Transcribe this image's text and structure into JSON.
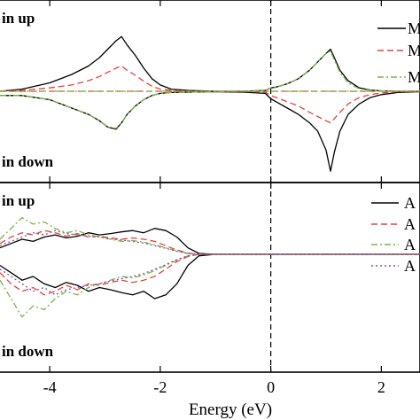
{
  "xlabel": "Energy (eV)",
  "chart_data": [
    {
      "type": "line",
      "xlim": [
        -4.9,
        2.7
      ],
      "ylim": [
        -2.0,
        1.9
      ],
      "grid": false,
      "legend_position": "top-right",
      "annotations": [
        {
          "text": "in up",
          "position": "top-left"
        },
        {
          "text": "in down",
          "position": "bottom-left"
        }
      ],
      "fermi_line_x": 0,
      "series": [
        {
          "name": "M",
          "color": "#000000",
          "dash": "solid",
          "x": [
            -4.9,
            -4.5,
            -4.0,
            -3.6,
            -3.3,
            -3.1,
            -2.95,
            -2.8,
            -2.7,
            -2.6,
            -2.45,
            -2.3,
            -2.15,
            -2.0,
            -1.8,
            -1.5,
            -1.0,
            -0.5,
            -0.1,
            0.0,
            0.1,
            0.3,
            0.5,
            0.7,
            0.85,
            1.0,
            1.08,
            1.15,
            1.25,
            1.4,
            1.6,
            1.8,
            2.0,
            2.3,
            2.7
          ],
          "up": [
            0.0,
            0.05,
            0.2,
            0.4,
            0.6,
            0.8,
            1.0,
            1.2,
            1.3,
            1.1,
            0.85,
            0.55,
            0.3,
            0.15,
            0.05,
            0.02,
            0.0,
            0.0,
            0.02,
            0.08,
            0.1,
            0.18,
            0.3,
            0.5,
            0.7,
            0.9,
            1.0,
            0.8,
            0.5,
            0.25,
            0.08,
            0.03,
            0.01,
            0.0,
            0.0
          ],
          "down": [
            -0.1,
            -0.1,
            -0.2,
            -0.4,
            -0.55,
            -0.7,
            -0.85,
            -0.9,
            -0.75,
            -0.55,
            -0.35,
            -0.2,
            -0.1,
            -0.05,
            -0.03,
            -0.02,
            -0.01,
            -0.02,
            -0.05,
            -0.18,
            -0.25,
            -0.4,
            -0.55,
            -0.75,
            -0.95,
            -1.4,
            -1.9,
            -1.45,
            -0.95,
            -0.55,
            -0.3,
            -0.15,
            -0.08,
            -0.03,
            -0.01
          ]
        },
        {
          "name": "M",
          "color": "#e8413a",
          "dash": "dashed",
          "x": [
            -4.9,
            -4.5,
            -4.0,
            -3.6,
            -3.3,
            -3.1,
            -2.95,
            -2.8,
            -2.7,
            -2.6,
            -2.45,
            -2.3,
            -2.15,
            -2.0,
            -1.8,
            -1.5,
            -1.0,
            -0.5,
            -0.1,
            0.0,
            0.1,
            0.3,
            0.5,
            0.7,
            0.85,
            1.0,
            1.08,
            1.15,
            1.25,
            1.4,
            1.6,
            1.8,
            2.0,
            2.3,
            2.7
          ],
          "up": [
            0.0,
            0.02,
            0.08,
            0.15,
            0.25,
            0.35,
            0.45,
            0.55,
            0.6,
            0.5,
            0.38,
            0.24,
            0.12,
            0.05,
            0.02,
            0.0,
            0.0,
            0.0,
            0.0,
            0.0,
            0.0,
            0.0,
            0.0,
            0.0,
            0.0,
            0.0,
            0.0,
            0.0,
            0.0,
            0.0,
            0.0,
            0.0,
            0.0,
            0.0,
            0.0
          ],
          "down": [
            0.0,
            0.0,
            0.0,
            0.0,
            0.0,
            0.0,
            0.0,
            0.0,
            0.0,
            0.0,
            0.0,
            0.0,
            0.0,
            0.0,
            0.0,
            0.0,
            0.0,
            0.0,
            -0.02,
            -0.1,
            -0.15,
            -0.25,
            -0.35,
            -0.5,
            -0.6,
            -0.7,
            -0.75,
            -0.65,
            -0.5,
            -0.3,
            -0.15,
            -0.08,
            -0.04,
            -0.01,
            0.0
          ]
        },
        {
          "name": "M",
          "color": "#7ab648",
          "dash": "dash-dot",
          "x": [
            -4.9,
            -4.5,
            -4.0,
            -3.6,
            -3.3,
            -3.1,
            -2.95,
            -2.8,
            -2.7,
            -2.6,
            -2.45,
            -2.3,
            -2.15,
            -2.0,
            -1.8,
            -1.5,
            -1.0,
            -0.5,
            -0.1,
            0.0,
            0.1,
            0.3,
            0.5,
            0.7,
            0.85,
            1.0,
            1.08,
            1.15,
            1.25,
            1.4,
            1.6,
            1.8,
            2.0,
            2.3,
            2.7
          ],
          "up": [
            0.0,
            0.0,
            0.0,
            0.0,
            0.0,
            0.0,
            0.0,
            0.0,
            0.0,
            0.0,
            0.0,
            0.0,
            0.0,
            0.0,
            0.0,
            0.0,
            0.0,
            0.0,
            0.02,
            0.08,
            0.1,
            0.18,
            0.3,
            0.5,
            0.7,
            0.9,
            0.95,
            0.75,
            0.45,
            0.2,
            0.06,
            0.02,
            0.01,
            0.0,
            0.0
          ],
          "down": [
            -0.1,
            -0.1,
            -0.2,
            -0.4,
            -0.55,
            -0.7,
            -0.85,
            -0.88,
            -0.75,
            -0.55,
            -0.35,
            -0.2,
            -0.1,
            -0.05,
            -0.03,
            -0.02,
            -0.01,
            0.0,
            0.0,
            0.0,
            0.0,
            0.0,
            0.0,
            0.0,
            0.0,
            0.0,
            0.0,
            0.0,
            0.0,
            0.0,
            0.0,
            0.0,
            0.0,
            0.0,
            0.0
          ]
        }
      ]
    },
    {
      "type": "line",
      "xlim": [
        -4.9,
        2.7
      ],
      "ylim": [
        -1.5,
        1.5
      ],
      "grid": false,
      "legend_position": "top-right",
      "annotations": [
        {
          "text": "in up",
          "position": "top-left"
        },
        {
          "text": "in down",
          "position": "bottom-left"
        }
      ],
      "fermi_line_x": 0,
      "series": [
        {
          "name": "A",
          "color": "#000000",
          "dash": "solid",
          "x": [
            -4.9,
            -4.7,
            -4.5,
            -4.3,
            -4.1,
            -3.9,
            -3.7,
            -3.5,
            -3.3,
            -3.1,
            -2.9,
            -2.7,
            -2.5,
            -2.3,
            -2.1,
            -1.9,
            -1.7,
            -1.5,
            -1.3,
            -1.0,
            -0.5,
            0.0,
            0.5,
            1.0,
            1.5,
            2.0,
            2.7
          ],
          "up": [
            0.15,
            0.25,
            0.35,
            0.3,
            0.4,
            0.45,
            0.38,
            0.42,
            0.5,
            0.45,
            0.48,
            0.52,
            0.55,
            0.5,
            0.6,
            0.55,
            0.4,
            0.15,
            0.02,
            0.0,
            0.0,
            0.0,
            0.0,
            0.0,
            0.0,
            0.0,
            0.0
          ],
          "down": [
            -0.15,
            -0.25,
            -0.35,
            -0.3,
            -0.4,
            -0.45,
            -0.38,
            -0.42,
            -0.5,
            -0.45,
            -0.48,
            -0.52,
            -0.55,
            -0.5,
            -0.6,
            -0.55,
            -0.4,
            -0.15,
            -0.02,
            0.0,
            0.0,
            0.0,
            0.0,
            0.0,
            0.0,
            0.0,
            0.0
          ]
        },
        {
          "name": "A",
          "color": "#e8413a",
          "dash": "dashed",
          "x": [
            -4.9,
            -4.7,
            -4.5,
            -4.3,
            -4.1,
            -3.9,
            -3.7,
            -3.5,
            -3.3,
            -3.1,
            -2.9,
            -2.7,
            -2.5,
            -2.3,
            -2.1,
            -1.9,
            -1.7,
            -1.5,
            -1.3,
            -1.0,
            -0.5,
            0.0,
            0.5,
            1.0,
            1.5,
            2.0,
            2.7
          ],
          "up": [
            0.25,
            0.4,
            0.5,
            0.45,
            0.55,
            0.5,
            0.42,
            0.48,
            0.4,
            0.42,
            0.38,
            0.35,
            0.38,
            0.35,
            0.3,
            0.2,
            0.1,
            0.03,
            0.0,
            0.0,
            0.0,
            0.0,
            0.0,
            0.0,
            0.0,
            0.0,
            0.0
          ],
          "down": [
            -0.25,
            -0.4,
            -0.5,
            -0.45,
            -0.55,
            -0.5,
            -0.42,
            -0.48,
            -0.4,
            -0.42,
            -0.38,
            -0.35,
            -0.38,
            -0.35,
            -0.3,
            -0.2,
            -0.1,
            -0.03,
            0.0,
            0.0,
            0.0,
            0.0,
            0.0,
            0.0,
            0.0,
            0.0,
            0.0
          ]
        },
        {
          "name": "A",
          "color": "#7ab648",
          "dash": "dash-dot",
          "x": [
            -4.9,
            -4.7,
            -4.5,
            -4.3,
            -4.1,
            -3.9,
            -3.7,
            -3.5,
            -3.3,
            -3.1,
            -2.9,
            -2.7,
            -2.5,
            -2.3,
            -2.1,
            -1.9,
            -1.7,
            -1.5,
            -1.3,
            -1.0,
            -0.5,
            0.0,
            0.5,
            1.0,
            1.5,
            2.0,
            2.7
          ],
          "up": [
            0.35,
            0.6,
            0.85,
            0.7,
            0.75,
            0.6,
            0.5,
            0.55,
            0.45,
            0.4,
            0.35,
            0.3,
            0.32,
            0.28,
            0.22,
            0.15,
            0.08,
            0.02,
            0.0,
            0.0,
            0.0,
            0.0,
            0.0,
            0.0,
            0.0,
            0.0,
            0.0
          ],
          "down": [
            -0.35,
            -0.6,
            -0.85,
            -0.7,
            -0.75,
            -0.6,
            -0.5,
            -0.55,
            -0.45,
            -0.4,
            -0.35,
            -0.3,
            -0.32,
            -0.28,
            -0.22,
            -0.15,
            -0.08,
            -0.02,
            0.0,
            0.0,
            0.0,
            0.0,
            0.0,
            0.0,
            0.0,
            0.0,
            0.0
          ]
        },
        {
          "name": "A",
          "color": "#8a4fa0",
          "dash": "dotted",
          "x": [
            -4.9,
            -4.7,
            -4.5,
            -4.3,
            -4.1,
            -3.9,
            -3.7,
            -3.5,
            -3.3,
            -3.1,
            -2.9,
            -2.7,
            -2.5,
            -2.3,
            -2.1,
            -1.9,
            -1.7,
            -1.5,
            -1.3,
            -1.0,
            -0.5,
            0.0,
            0.5,
            1.0,
            1.5,
            2.0,
            2.7
          ],
          "up": [
            0.2,
            0.3,
            0.4,
            0.5,
            0.45,
            0.55,
            0.48,
            0.45,
            0.42,
            0.4,
            0.36,
            0.33,
            0.3,
            0.26,
            0.2,
            0.14,
            0.07,
            0.02,
            0.0,
            0.0,
            0.0,
            0.0,
            0.0,
            0.0,
            0.0,
            0.0,
            0.0
          ],
          "down": [
            -0.2,
            -0.3,
            -0.4,
            -0.5,
            -0.45,
            -0.55,
            -0.48,
            -0.45,
            -0.42,
            -0.4,
            -0.36,
            -0.33,
            -0.3,
            -0.26,
            -0.2,
            -0.14,
            -0.07,
            -0.02,
            0.0,
            0.0,
            0.0,
            0.0,
            0.0,
            0.0,
            0.0,
            0.0,
            0.0
          ]
        }
      ]
    }
  ],
  "x_ticks": [
    {
      "value": -4,
      "label": "-4"
    },
    {
      "value": -2,
      "label": "-2"
    },
    {
      "value": 0,
      "label": "0"
    },
    {
      "value": 2,
      "label": "2"
    }
  ]
}
